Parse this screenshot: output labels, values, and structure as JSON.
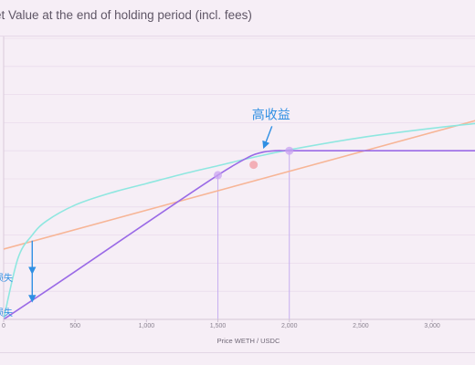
{
  "chart_data": {
    "type": "line",
    "title": "et Value at the end of holding period  (incl. fees)",
    "xlabel": "Price WETH / USDC",
    "xlim": [
      0,
      3300
    ],
    "ylim": [
      0,
      3.0
    ],
    "x_ticks": [
      "0",
      "500",
      "1,000",
      "1,500",
      "2,000",
      "2,500",
      "3,000"
    ],
    "x_tick_values": [
      0,
      500,
      1000,
      1500,
      2000,
      2500,
      3000
    ],
    "grid": true,
    "series": [
      {
        "color": "#f7b596",
        "x": [
          0,
          3300
        ],
        "y": [
          0.75,
          2.12
        ]
      },
      {
        "color": "#8fe7e0",
        "x": [
          0,
          100,
          200,
          300,
          500,
          750,
          1000,
          1250,
          1500,
          1750,
          2000,
          2500,
          3000,
          3300
        ],
        "y": [
          0.0,
          0.65,
          0.9,
          1.05,
          1.22,
          1.35,
          1.45,
          1.55,
          1.64,
          1.73,
          1.81,
          1.94,
          2.04,
          2.09
        ]
      },
      {
        "color": "#9a6ae6",
        "x": [
          0,
          500,
          1000,
          1500,
          1700,
          1800,
          1900,
          2000,
          2200,
          2600,
          3000,
          3300
        ],
        "y": [
          0.0,
          0.51,
          1.03,
          1.54,
          1.72,
          1.78,
          1.8,
          1.8,
          1.8,
          1.8,
          1.8,
          1.8
        ]
      }
    ],
    "markers": [
      {
        "x": 1500,
        "y": 1.54,
        "color": "#c9a3f2"
      },
      {
        "x": 1750,
        "y": 1.65,
        "color": "#f29aa2"
      },
      {
        "x": 2000,
        "y": 1.8,
        "color": "#c9a3f2"
      }
    ],
    "vlines": [
      1500,
      2000
    ],
    "annotations": [
      {
        "text": "高收益",
        "x": 2000,
        "y": 2.12
      },
      {
        "text": "损失",
        "x": 0,
        "y": 0.68
      },
      {
        "text": "损失",
        "x": 0,
        "y": 0.3
      }
    ]
  }
}
